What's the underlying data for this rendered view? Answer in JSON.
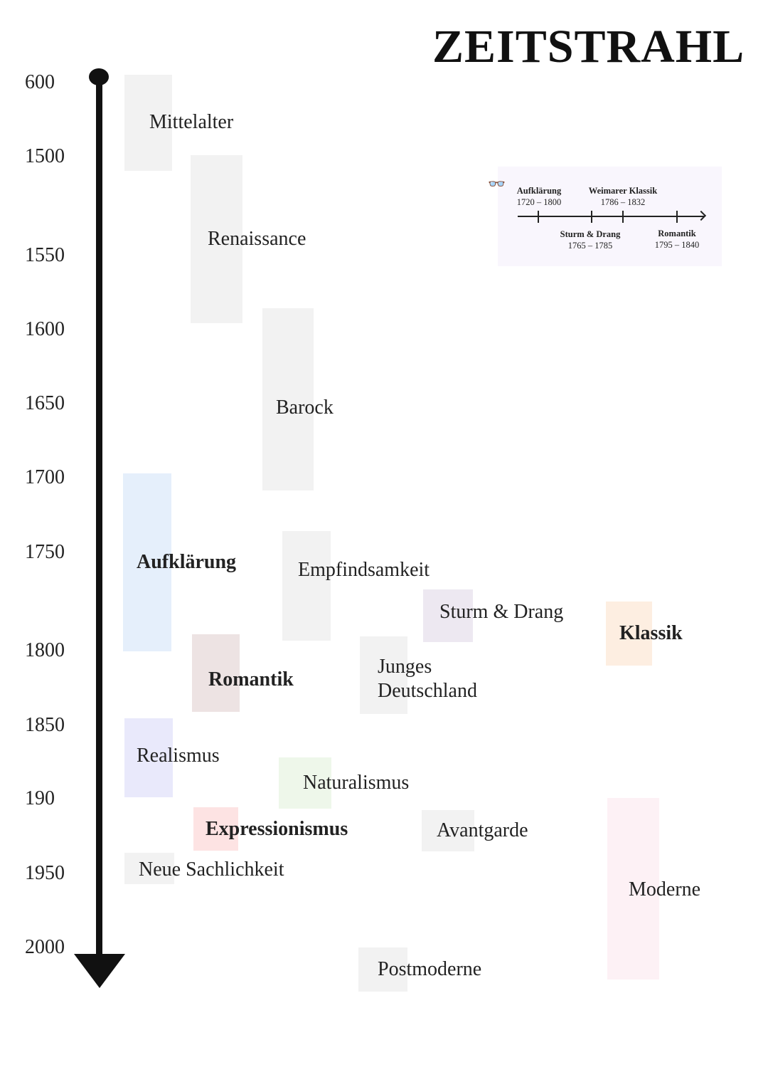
{
  "title": "ZEITSTRAHL",
  "years": [
    "600",
    "1500",
    "1550",
    "1600",
    "1650",
    "1700",
    "1750",
    "1800",
    "1850",
    "190",
    "1950",
    "2000"
  ],
  "epochs": {
    "mittelalter": "Mittelalter",
    "renaissance": "Renaissance",
    "barock": "Barock",
    "aufklaerung": "Aufklärung",
    "empfindsamkeit": "Empfindsamkeit",
    "sturm": "Sturm & Drang",
    "klassik": "Klassik",
    "romantik": "Romantik",
    "junges1": "Junges",
    "junges2": "Deutschland",
    "realismus": "Realismus",
    "naturalismus": "Naturalismus",
    "expressionismus": "Expressionismus",
    "avantgarde": "Avantgarde",
    "neue": "Neue Sachlichkeit",
    "moderne": "Moderne",
    "postmoderne": "Postmoderne"
  },
  "inset": {
    "items": [
      {
        "name": "Aufklärung",
        "range": "1720 – 1800"
      },
      {
        "name": "Weimarer Klassik",
        "range": "1786 – 1832"
      },
      {
        "name": "Sturm & Drang",
        "range": "1765 – 1785"
      },
      {
        "name": "Romantik",
        "range": "1795 – 1840"
      }
    ]
  },
  "colors": {
    "grey": "#f2f2f2",
    "aufklaerung": "#e5effb",
    "romantik": "#ede3e3",
    "sturm": "#ede8f1",
    "klassik": "#fdeee1",
    "realismus": "#e9e9fb",
    "naturalismus": "#eef7ea",
    "expressionismus": "#fde3e3",
    "moderne": "#fdf1f5"
  }
}
